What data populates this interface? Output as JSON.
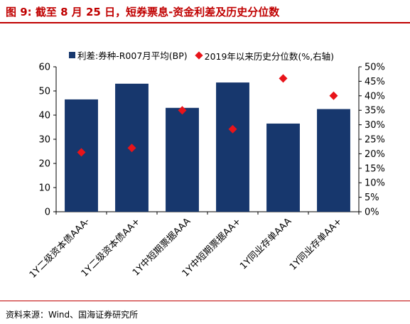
{
  "figure": {
    "title": "图 9:  截至 8 月 25 日，短券票息-资金利差及历史分位数",
    "source": "资料来源：Wind、国海证券研究所"
  },
  "chart_data": {
    "type": "bar",
    "categories": [
      "1Y二级资本债AAA-",
      "1Y二级资本债AA+",
      "1Y中短期票据AAA",
      "1Y中短期票据AA+",
      "1Y同业存单AAA",
      "1Y同业存单AA+"
    ],
    "series": [
      {
        "name": "利差:券种-R007月平均(BP)",
        "type": "bar",
        "axis": "left",
        "color": "#17376d",
        "values": [
          46.5,
          53,
          43,
          53.5,
          36.5,
          42.5
        ]
      },
      {
        "name": "2019年以来历史分位数(%,右轴)",
        "type": "scatter",
        "axis": "right",
        "color": "#e8141a",
        "values": [
          20.5,
          22,
          35,
          28.5,
          46,
          40
        ]
      }
    ],
    "y_left": {
      "min": 0,
      "max": 60,
      "ticks": [
        0,
        10,
        20,
        30,
        40,
        50,
        60
      ]
    },
    "y_right": {
      "min": 0,
      "max": 50,
      "ticks": [
        "0%",
        "5%",
        "10%",
        "15%",
        "20%",
        "25%",
        "30%",
        "35%",
        "40%",
        "45%",
        "50%"
      ]
    },
    "legend": "top",
    "grid": false
  }
}
